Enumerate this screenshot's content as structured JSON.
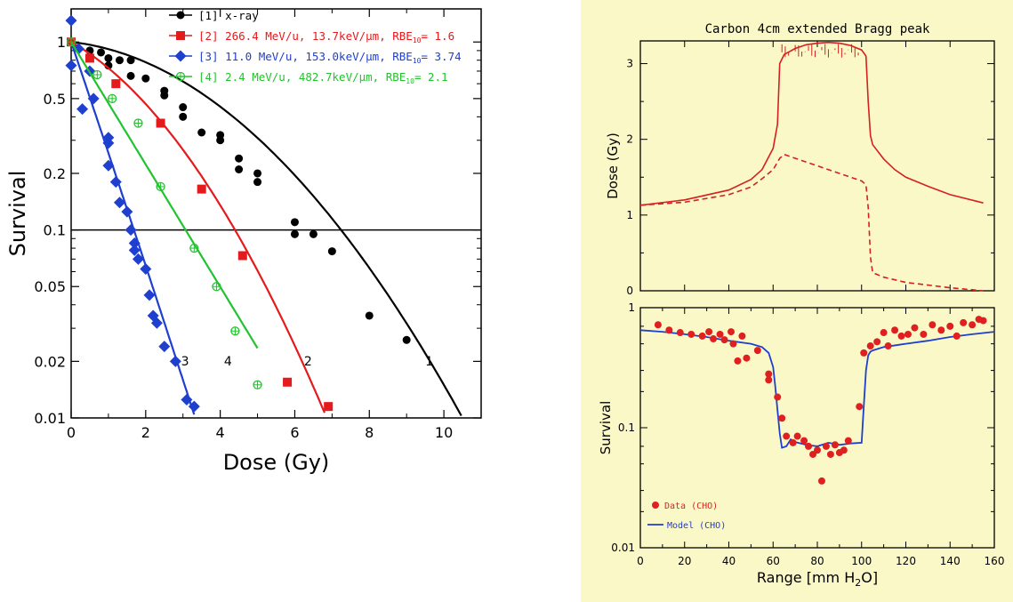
{
  "chart_data": [
    {
      "type": "scatter",
      "xlabel": "Dose (Gy)",
      "ylabel": "Survival",
      "xlim": [
        0,
        11
      ],
      "ylim": [
        0.01,
        1.5
      ],
      "yscale": "log",
      "xticks": [
        0,
        2,
        4,
        6,
        8,
        10
      ],
      "yticks": [
        {
          "v": 1,
          "label": "1"
        },
        {
          "v": 0.5,
          "label": "0.5"
        },
        {
          "v": 0.2,
          "label": "0.2"
        },
        {
          "v": 0.1,
          "label": "0.1"
        },
        {
          "v": 0.05,
          "label": "0.05"
        },
        {
          "v": 0.02,
          "label": "0.02"
        },
        {
          "v": 0.01,
          "label": "0.01"
        }
      ],
      "reference_line": 0.1,
      "legend_position": "top",
      "series": [
        {
          "id": "s1",
          "marker": "circle",
          "color": "#000000",
          "curve_label": "1",
          "legend": {
            "tag": "[1]",
            "text": "x-ray",
            "rbe": ""
          },
          "curve": {
            "alpha": 0.05,
            "beta": 0.037,
            "xmax": 10.6
          },
          "points": [
            [
              0,
              1
            ],
            [
              0.5,
              0.9
            ],
            [
              0.8,
              0.88
            ],
            [
              1.0,
              0.82
            ],
            [
              1.0,
              0.75
            ],
            [
              1.3,
              0.8
            ],
            [
              1.6,
              0.8
            ],
            [
              1.6,
              0.66
            ],
            [
              2.0,
              0.64
            ],
            [
              2.5,
              0.55
            ],
            [
              2.5,
              0.52
            ],
            [
              3.0,
              0.45
            ],
            [
              3.0,
              0.4
            ],
            [
              3.5,
              0.33
            ],
            [
              4.0,
              0.32
            ],
            [
              4.0,
              0.3
            ],
            [
              4.5,
              0.24
            ],
            [
              4.5,
              0.21
            ],
            [
              5.0,
              0.2
            ],
            [
              5.0,
              0.18
            ],
            [
              6.0,
              0.11
            ],
            [
              6.0,
              0.095
            ],
            [
              6.5,
              0.095
            ],
            [
              7.0,
              0.077
            ],
            [
              8.0,
              0.035
            ],
            [
              9.0,
              0.026
            ]
          ],
          "label_at": [
            9.5,
            0.019
          ]
        },
        {
          "id": "s2",
          "marker": "square",
          "color": "#e41a1c",
          "curve_label": "2",
          "legend": {
            "tag": "[2]",
            "text": "266.4 MeV/u,  13.7keV/µm, RBE",
            "rbe": "= 1.6"
          },
          "curve": {
            "alpha": 0.26,
            "beta": 0.06,
            "xmax": 6.8
          },
          "points": [
            [
              0,
              1
            ],
            [
              0.5,
              0.82
            ],
            [
              1.2,
              0.6
            ],
            [
              2.4,
              0.37
            ],
            [
              3.5,
              0.165
            ],
            [
              4.6,
              0.073
            ],
            [
              5.8,
              0.0155
            ],
            [
              6.9,
              0.0115
            ]
          ],
          "label_at": [
            6.25,
            0.019
          ]
        },
        {
          "id": "s3",
          "marker": "diamond",
          "color": "#1f3fcf",
          "curve_label": "3",
          "legend": {
            "tag": "[3]",
            "text": "11.0 MeV/u, 153.0keV/µm, RBE",
            "rbe": "= 3.74"
          },
          "curve": {
            "alpha": 1.35,
            "beta": 0.01,
            "xmax": 3.3
          },
          "points": [
            [
              0,
              1.3
            ],
            [
              0,
              0.75
            ],
            [
              0.2,
              0.92
            ],
            [
              0.3,
              0.44
            ],
            [
              0.5,
              0.7
            ],
            [
              0.6,
              0.5
            ],
            [
              1.0,
              0.31
            ],
            [
              1.0,
              0.29
            ],
            [
              1.0,
              0.22
            ],
            [
              1.2,
              0.18
            ],
            [
              1.3,
              0.14
            ],
            [
              1.5,
              0.125
            ],
            [
              1.6,
              0.1
            ],
            [
              1.7,
              0.085
            ],
            [
              1.7,
              0.078
            ],
            [
              1.8,
              0.07
            ],
            [
              2.0,
              0.062
            ],
            [
              2.1,
              0.045
            ],
            [
              2.2,
              0.035
            ],
            [
              2.3,
              0.032
            ],
            [
              2.5,
              0.024
            ],
            [
              2.8,
              0.02
            ],
            [
              3.1,
              0.0125
            ],
            [
              3.3,
              0.0115
            ]
          ],
          "label_at": [
            2.95,
            0.019
          ]
        },
        {
          "id": "s4",
          "marker": "circle-plus",
          "color": "#22c32e",
          "curve_label": "4",
          "legend": {
            "tag": "[4]",
            "text": "2.4 MeV/u, 482.7keV/µm, RBE",
            "rbe": "= 2.1"
          },
          "curve": {
            "alpha": 0.75,
            "beta": 0.0,
            "xmax": 5.0
          },
          "points": [
            [
              0,
              1
            ],
            [
              0.7,
              0.67
            ],
            [
              1.1,
              0.5
            ],
            [
              1.8,
              0.37
            ],
            [
              2.4,
              0.17
            ],
            [
              3.3,
              0.08
            ],
            [
              3.9,
              0.05
            ],
            [
              4.4,
              0.029
            ],
            [
              5.0,
              0.015
            ]
          ],
          "label_at": [
            4.1,
            0.019
          ]
        }
      ]
    },
    {
      "type": "line",
      "title": "Carbon 4cm extended Bragg peak",
      "xlabel": "",
      "ylabel": "Dose (Gy)",
      "xlim": [
        0,
        160
      ],
      "ylim": [
        0,
        3.3
      ],
      "yticks": [
        0,
        1,
        2,
        3
      ],
      "grid": false,
      "series": [
        {
          "id": "dose-total",
          "style": "solid",
          "color": "#d42020",
          "x": [
            0,
            20,
            40,
            50,
            55,
            60,
            62,
            63,
            65,
            70,
            75,
            80,
            85,
            90,
            95,
            100,
            102,
            103,
            104,
            105,
            110,
            115,
            120,
            130,
            140,
            155
          ],
          "y": [
            1.13,
            1.2,
            1.33,
            1.47,
            1.6,
            1.88,
            2.2,
            3.0,
            3.12,
            3.2,
            3.25,
            3.27,
            3.28,
            3.27,
            3.24,
            3.18,
            3.1,
            2.5,
            2.05,
            1.93,
            1.74,
            1.6,
            1.5,
            1.38,
            1.27,
            1.16
          ]
        },
        {
          "id": "dose-primary",
          "style": "dashed",
          "color": "#d42020",
          "x": [
            0,
            20,
            40,
            50,
            55,
            60,
            63,
            65,
            70,
            80,
            90,
            100,
            102,
            103,
            104,
            105,
            110,
            120,
            140,
            155
          ],
          "y": [
            1.13,
            1.17,
            1.27,
            1.37,
            1.48,
            1.6,
            1.75,
            1.8,
            1.75,
            1.65,
            1.55,
            1.45,
            1.4,
            1.1,
            0.45,
            0.24,
            0.18,
            0.11,
            0.04,
            0.0
          ]
        }
      ]
    },
    {
      "type": "scatter",
      "xlabel": "Range [mm H2O]",
      "xlabel_main": "Range [mm H",
      "xlabel_sub": "2",
      "xlabel_end": "O]",
      "ylabel": "Survival",
      "xlim": [
        0,
        160
      ],
      "ylim": [
        0.01,
        1
      ],
      "yscale": "log",
      "xticks": [
        0,
        20,
        40,
        60,
        80,
        100,
        120,
        140,
        160
      ],
      "yticks": [
        {
          "v": 1,
          "label": "1"
        },
        {
          "v": 0.1,
          "label": "0.1"
        },
        {
          "v": 0.01,
          "label": "0.01"
        }
      ],
      "legend_position": "bottom-left",
      "legend": [
        {
          "label": "Data (CHO)",
          "color": "#e02020",
          "kind": "marker"
        },
        {
          "label": "Model (CHO)",
          "color": "#1f3fcf",
          "kind": "line"
        }
      ],
      "data_points": [
        [
          8,
          0.72
        ],
        [
          13,
          0.65
        ],
        [
          18,
          0.62
        ],
        [
          23,
          0.6
        ],
        [
          28,
          0.58
        ],
        [
          31,
          0.63
        ],
        [
          33,
          0.55
        ],
        [
          36,
          0.6
        ],
        [
          38,
          0.54
        ],
        [
          41,
          0.63
        ],
        [
          42,
          0.5
        ],
        [
          44,
          0.36
        ],
        [
          46,
          0.58
        ],
        [
          48,
          0.38
        ],
        [
          53,
          0.44
        ],
        [
          58,
          0.28
        ],
        [
          58,
          0.25
        ],
        [
          62,
          0.18
        ],
        [
          64,
          0.12
        ],
        [
          66,
          0.085
        ],
        [
          69,
          0.075
        ],
        [
          71,
          0.085
        ],
        [
          74,
          0.078
        ],
        [
          76,
          0.07
        ],
        [
          78,
          0.06
        ],
        [
          80,
          0.065
        ],
        [
          82,
          0.036
        ],
        [
          84,
          0.07
        ],
        [
          86,
          0.06
        ],
        [
          88,
          0.072
        ],
        [
          90,
          0.062
        ],
        [
          92,
          0.065
        ],
        [
          94,
          0.078
        ],
        [
          99,
          0.15
        ],
        [
          101,
          0.42
        ],
        [
          104,
          0.48
        ],
        [
          107,
          0.52
        ],
        [
          110,
          0.62
        ],
        [
          112,
          0.48
        ],
        [
          115,
          0.65
        ],
        [
          118,
          0.58
        ],
        [
          121,
          0.6
        ],
        [
          124,
          0.68
        ],
        [
          128,
          0.6
        ],
        [
          132,
          0.72
        ],
        [
          136,
          0.65
        ],
        [
          140,
          0.7
        ],
        [
          143,
          0.58
        ],
        [
          146,
          0.75
        ],
        [
          150,
          0.72
        ],
        [
          153,
          0.8
        ],
        [
          155,
          0.78
        ]
      ],
      "model_x": [
        0,
        10,
        20,
        30,
        40,
        50,
        55,
        58,
        60,
        61,
        62,
        63,
        64,
        66,
        68,
        70,
        75,
        80,
        85,
        90,
        95,
        100,
        101,
        102,
        103,
        104,
        105,
        110,
        120,
        130,
        140,
        150,
        160
      ],
      "model_y": [
        0.65,
        0.63,
        0.6,
        0.57,
        0.53,
        0.5,
        0.47,
        0.42,
        0.32,
        0.22,
        0.14,
        0.09,
        0.068,
        0.07,
        0.08,
        0.076,
        0.072,
        0.07,
        0.075,
        0.072,
        0.074,
        0.075,
        0.15,
        0.3,
        0.4,
        0.43,
        0.44,
        0.47,
        0.5,
        0.53,
        0.57,
        0.6,
        0.63
      ]
    }
  ]
}
